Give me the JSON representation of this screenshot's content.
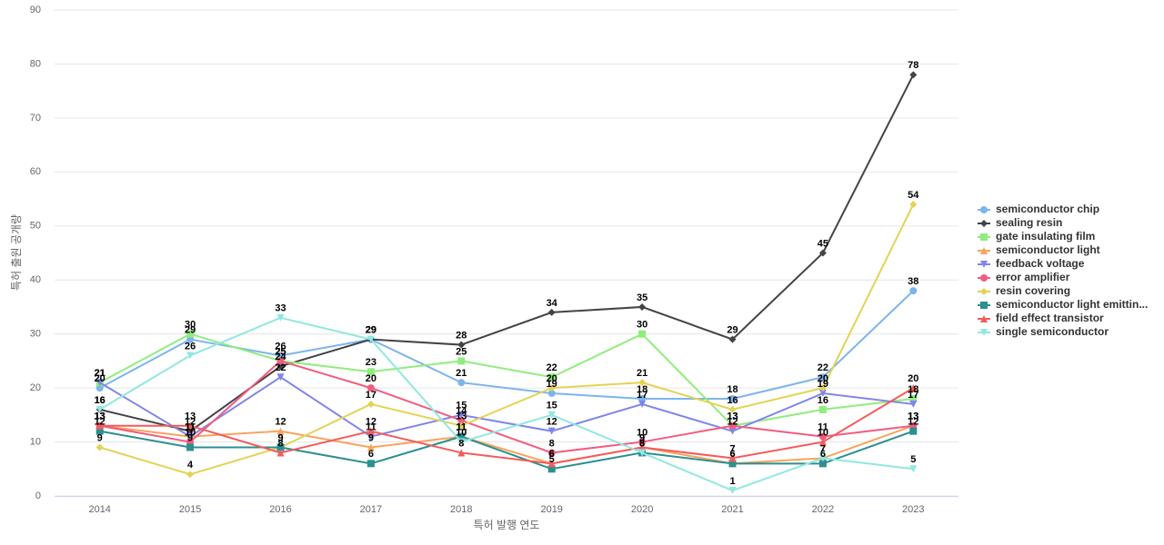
{
  "chart_data": {
    "type": "line",
    "x_label": "특허 발행 연도",
    "y_label": "특허 출원 공개량",
    "categories": [
      "2014",
      "2015",
      "2016",
      "2017",
      "2018",
      "2019",
      "2020",
      "2021",
      "2022",
      "2023"
    ],
    "ylim": [
      0,
      90
    ],
    "yticks": [
      0,
      10,
      20,
      30,
      40,
      50,
      60,
      70,
      80,
      90
    ],
    "grid": true,
    "legend": "right",
    "series": [
      {
        "name": "semiconductor chip",
        "color": "#7cb5ec",
        "marker": "circle",
        "values": [
          20,
          29,
          26,
          29,
          21,
          19,
          18,
          18,
          22,
          38
        ]
      },
      {
        "name": "sealing resin",
        "color": "#434348",
        "marker": "diamond",
        "values": [
          16,
          12,
          24,
          29,
          28,
          34,
          35,
          29,
          45,
          78
        ]
      },
      {
        "name": "gate insulating film",
        "color": "#90ed7d",
        "marker": "square",
        "values": [
          21,
          30,
          25,
          23,
          25,
          22,
          30,
          13,
          16,
          18
        ]
      },
      {
        "name": "semiconductor light",
        "color": "#f7a35c",
        "marker": "triangle",
        "values": [
          13,
          11,
          12,
          9,
          11,
          6,
          9,
          6,
          7,
          13
        ]
      },
      {
        "name": "feedback voltage",
        "color": "#8085e9",
        "marker": "triangle-down",
        "values": [
          21,
          11,
          22,
          11,
          15,
          12,
          17,
          12,
          19,
          17
        ]
      },
      {
        "name": "error amplifier",
        "color": "#f15c80",
        "marker": "circle",
        "values": [
          13,
          10,
          25,
          20,
          14,
          8,
          10,
          13,
          11,
          13
        ]
      },
      {
        "name": "resin covering",
        "color": "#e4d354",
        "marker": "diamond",
        "values": [
          9,
          4,
          9,
          17,
          13,
          20,
          21,
          16,
          20,
          54
        ]
      },
      {
        "name": "semiconductor light emittin...",
        "color": "#2b908f",
        "marker": "square",
        "values": [
          12,
          9,
          9,
          6,
          11,
          5,
          8,
          6,
          6,
          12
        ]
      },
      {
        "name": "field effect transistor",
        "color": "#f45b5b",
        "marker": "triangle",
        "values": [
          13,
          13,
          8,
          12,
          8,
          6,
          9,
          7,
          10,
          20
        ]
      },
      {
        "name": "single semiconductor",
        "color": "#91e8e1",
        "marker": "triangle-down",
        "values": [
          16,
          26,
          33,
          29,
          10,
          15,
          8,
          1,
          7,
          5
        ]
      }
    ]
  }
}
